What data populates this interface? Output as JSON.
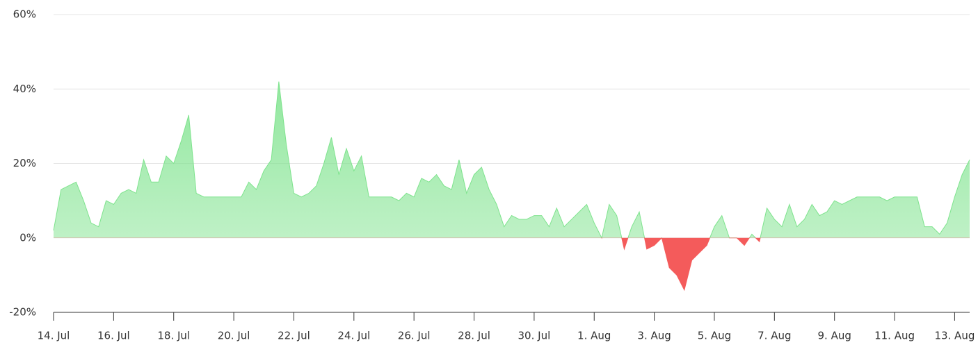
{
  "chart_data": {
    "type": "area",
    "categories": [
      "14. Jul",
      null,
      null,
      null,
      null,
      null,
      null,
      null,
      "16. Jul",
      null,
      null,
      null,
      null,
      null,
      null,
      null,
      "18. Jul",
      null,
      null,
      null,
      null,
      null,
      null,
      null,
      "20. Jul",
      null,
      null,
      null,
      null,
      null,
      null,
      null,
      "22. Jul",
      null,
      null,
      null,
      null,
      null,
      null,
      null,
      "24. Jul",
      null,
      null,
      null,
      null,
      null,
      null,
      null,
      "26. Jul",
      null,
      null,
      null,
      null,
      null,
      null,
      null,
      "28. Jul",
      null,
      null,
      null,
      null,
      null,
      null,
      null,
      "30. Jul",
      null,
      null,
      null,
      null,
      null,
      null,
      null,
      "1. Aug",
      null,
      null,
      null,
      null,
      null,
      null,
      null,
      "3. Aug",
      null,
      null,
      null,
      null,
      null,
      null,
      null,
      "5. Aug",
      null,
      null,
      null,
      null,
      null,
      null,
      null,
      "7. Aug",
      null,
      null,
      null,
      null,
      null,
      null,
      null,
      "9. Aug",
      null,
      null,
      null,
      null,
      null,
      null,
      null,
      "11. Aug",
      null,
      null,
      null,
      null,
      null,
      null,
      null,
      "13. Aug",
      null,
      null
    ],
    "values": [
      2,
      13,
      14,
      15,
      10,
      4,
      3,
      10,
      9,
      12,
      13,
      12,
      21,
      15,
      15,
      22,
      20,
      26,
      33,
      12,
      11,
      11,
      11,
      11,
      11,
      11,
      15,
      13,
      18,
      21,
      42,
      25,
      12,
      11,
      12,
      14,
      20,
      27,
      17,
      24,
      18,
      22,
      11,
      11,
      11,
      11,
      10,
      12,
      11,
      16,
      15,
      17,
      14,
      13,
      21,
      12,
      17,
      19,
      13,
      9,
      3,
      6,
      5,
      5,
      6,
      6,
      3,
      8,
      3,
      5,
      7,
      9,
      4,
      0,
      9,
      6,
      -3,
      3,
      7,
      -3,
      -2,
      0,
      -8,
      -10,
      -14,
      -6,
      -4,
      -2,
      3,
      6,
      0,
      0,
      -2,
      1,
      -1,
      8,
      5,
      3,
      9,
      3,
      5,
      9,
      6,
      7,
      10,
      9,
      10,
      11,
      11,
      11,
      11,
      10,
      11,
      11,
      11,
      11,
      3,
      3,
      1,
      4,
      11,
      17,
      21
    ],
    "color": "#7ee38d",
    "negative_color": "#f45b5b",
    "ylim": [
      -20,
      60
    ],
    "yticks": [
      {
        "value": -20,
        "label": "-20%"
      },
      {
        "value": 0,
        "label": "0%"
      },
      {
        "value": 20,
        "label": "20%"
      },
      {
        "value": 40,
        "label": "40%"
      },
      {
        "value": 60,
        "label": "60%"
      }
    ],
    "grid": true
  }
}
